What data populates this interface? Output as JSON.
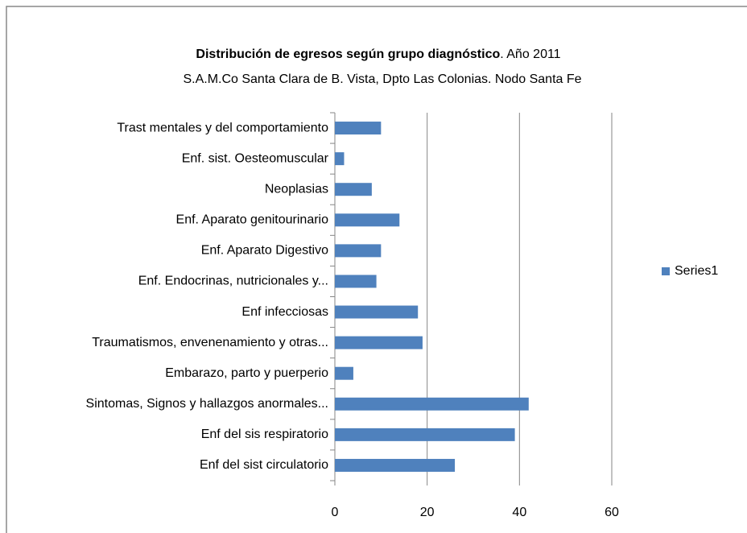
{
  "chart_data": {
    "type": "barh",
    "title": [
      "Distribución de egresos según grupo diagnóstico",
      ". Año 2011"
    ],
    "subtitle": "S.A.M.Co Santa Clara de B. Vista, Dpto Las Colonias. Nodo Santa Fe",
    "categories": [
      "Trast mentales y del comportamiento",
      "Enf. sist. Oesteomuscular",
      "Neoplasias",
      "Enf. Aparato genitourinario",
      "Enf. Aparato Digestivo",
      "Enf. Endocrinas, nutricionales y...",
      "Enf infecciosas",
      "Traumatismos, envenenamiento y otras...",
      "Embarazo, parto y puerperio",
      "Sintomas, Signos y hallazgos anormales...",
      "Enf del sis respiratorio",
      "Enf del sist circulatorio"
    ],
    "series": [
      {
        "name": "Series1",
        "color": "#4f81bd",
        "values": [
          10,
          2,
          8,
          14,
          10,
          9,
          18,
          19,
          4,
          42,
          39,
          26
        ]
      }
    ],
    "xlim": [
      0,
      60
    ],
    "xticks": [
      0,
      20,
      40,
      60
    ],
    "grid": true,
    "legend": "right"
  }
}
